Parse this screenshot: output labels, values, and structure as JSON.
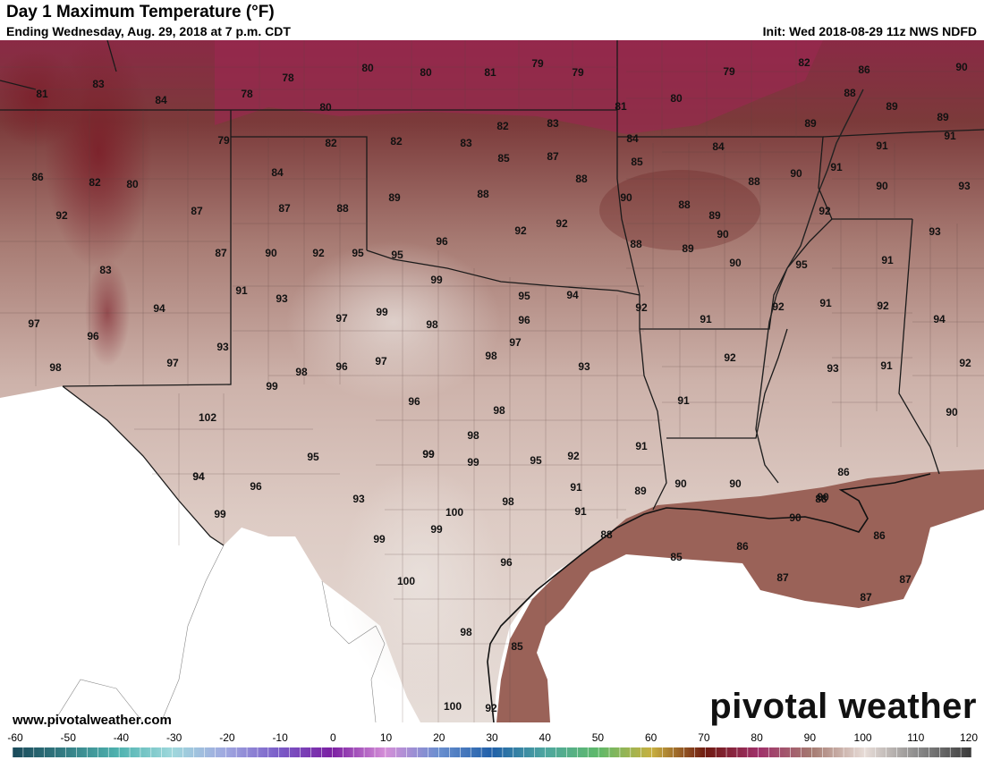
{
  "header": {
    "title": "Day 1 Maximum Temperature (°F)",
    "subtitle": "Ending Wednesday, Aug. 29, 2018 at 7 p.m. CDT",
    "init": "Init: Wed 2018-08-29 11z NWS NDFD"
  },
  "footer": {
    "site": "www.pivotalweather.com",
    "brand": "pivotal weather"
  },
  "colorbar": {
    "ticks": [
      "-60",
      "-50",
      "-40",
      "-30",
      "-20",
      "-10",
      "0",
      "10",
      "20",
      "30",
      "40",
      "50",
      "60",
      "70",
      "80",
      "90",
      "100",
      "110",
      "120"
    ],
    "min": -60,
    "max": 120,
    "stops": [
      {
        "v": -60,
        "c": "#1a4a5a"
      },
      {
        "v": -40,
        "c": "#4fb3b0"
      },
      {
        "v": -30,
        "c": "#9fd8dc"
      },
      {
        "v": -20,
        "c": "#a0a8e0"
      },
      {
        "v": -10,
        "c": "#7a5cc8"
      },
      {
        "v": 0,
        "c": "#7b1fa2"
      },
      {
        "v": 10,
        "c": "#d58fd8"
      },
      {
        "v": 20,
        "c": "#6a8fd0"
      },
      {
        "v": 30,
        "c": "#1f5fa8"
      },
      {
        "v": 40,
        "c": "#4ea7a0"
      },
      {
        "v": 50,
        "c": "#5fb96a"
      },
      {
        "v": 60,
        "c": "#c8b040"
      },
      {
        "v": 70,
        "c": "#6e1a10"
      },
      {
        "v": 80,
        "c": "#a0306a"
      },
      {
        "v": 90,
        "c": "#a57a70"
      },
      {
        "v": 100,
        "c": "#e8ddd8"
      },
      {
        "v": 110,
        "c": "#8a8a8a"
      },
      {
        "v": 120,
        "c": "#3a3a3a"
      }
    ]
  },
  "map_labels": [
    "81",
    "83",
    "84",
    "78",
    "78",
    "80",
    "80",
    "81",
    "79",
    "79",
    "79",
    "80",
    "82",
    "86",
    "90",
    "80",
    "81",
    "88",
    "89",
    "89",
    "79",
    "82",
    "82",
    "83",
    "82",
    "83",
    "84",
    "85",
    "85",
    "87",
    "84",
    "88",
    "89",
    "91",
    "91",
    "86",
    "82",
    "80",
    "92",
    "87",
    "84",
    "87",
    "88",
    "89",
    "88",
    "92",
    "92",
    "90",
    "90",
    "88",
    "89",
    "90",
    "93",
    "88",
    "96",
    "88",
    "89",
    "90",
    "91",
    "92",
    "93",
    "83",
    "87",
    "90",
    "92",
    "95",
    "95",
    "99",
    "95",
    "94",
    "92",
    "91",
    "90",
    "92",
    "91",
    "94",
    "97",
    "96",
    "94",
    "91",
    "93",
    "97",
    "99",
    "98",
    "96",
    "95",
    "92",
    "98",
    "97",
    "93",
    "98",
    "96",
    "97",
    "93",
    "92",
    "91",
    "98",
    "94",
    "99",
    "97",
    "99",
    "96",
    "98",
    "92",
    "91",
    "93",
    "91",
    "102",
    "94",
    "96",
    "95",
    "99",
    "98",
    "99",
    "95",
    "92",
    "91",
    "91",
    "90",
    "90",
    "89",
    "90",
    "88",
    "99",
    "99",
    "100",
    "93",
    "98",
    "91",
    "90",
    "86",
    "86",
    "99",
    "96",
    "100",
    "88",
    "85",
    "87",
    "87",
    "87",
    "90",
    "86",
    "98",
    "85",
    "100",
    "92"
  ]
}
